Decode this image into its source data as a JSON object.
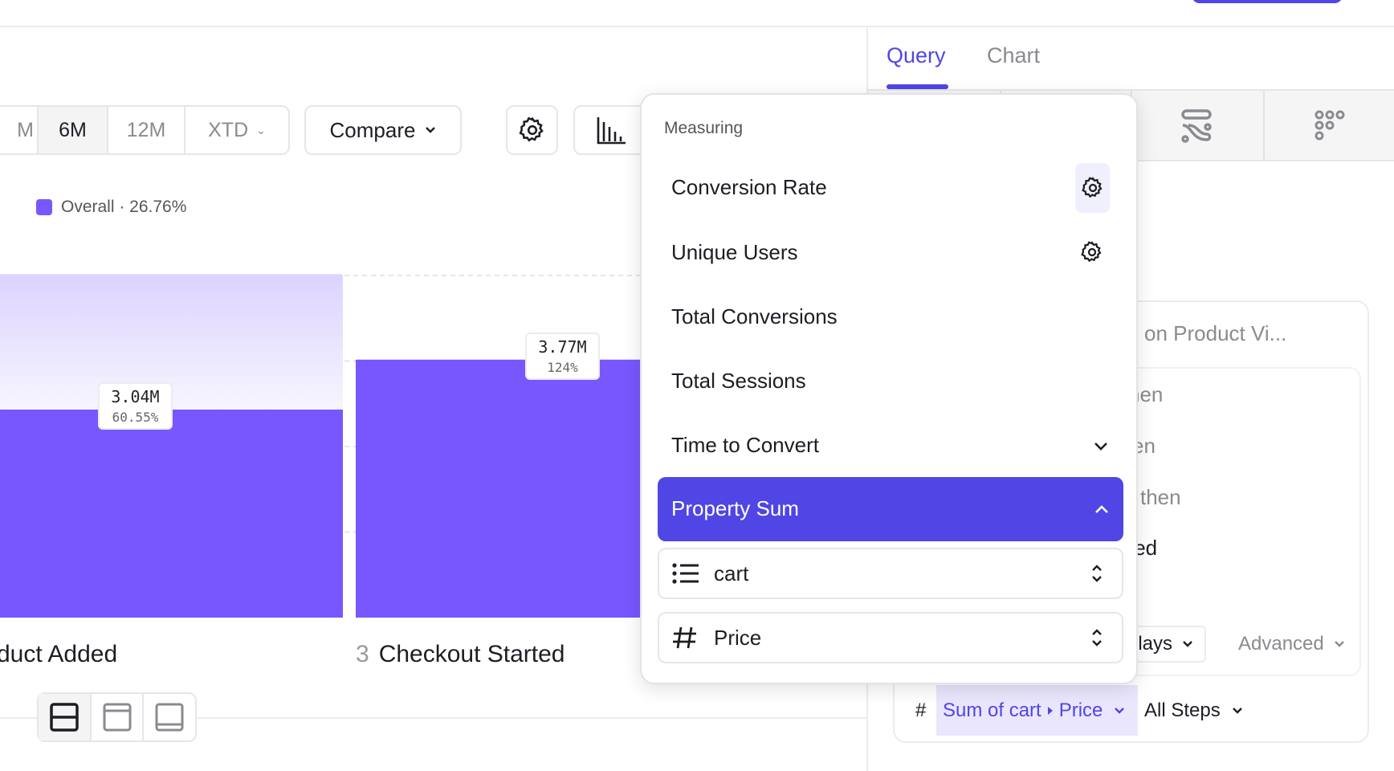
{
  "header": {
    "accent": "#4f46e5"
  },
  "tabs": [
    {
      "label": "Query",
      "active": true
    },
    {
      "label": "Chart",
      "active": false
    }
  ],
  "toolbar": {
    "ranges": [
      {
        "label": "M"
      },
      {
        "label": "6M",
        "selected": true
      },
      {
        "label": "12M"
      },
      {
        "label": "XTD"
      }
    ],
    "compare_label": "Compare",
    "settings_icon": "gear-icon",
    "chart_type_icon": "bar-chart-icon"
  },
  "side_icons": [
    "flows-icon",
    "grid-dots-icon"
  ],
  "legend": {
    "label": "Overall · 26.76%",
    "color": "#7857ff"
  },
  "chart_data": {
    "type": "bar",
    "categories": [
      "duct Added",
      "Checkout Started"
    ],
    "step_numbers": [
      "",
      "3"
    ],
    "values": [
      3.04,
      3.77
    ],
    "value_labels": [
      "3.04M",
      "3.77M"
    ],
    "percent_labels": [
      "60.55%",
      "124%"
    ],
    "percents": [
      60.55,
      124
    ],
    "unit": "M",
    "bar_color": "#7857ff",
    "prev_color": "#dcd3ff",
    "grid": true
  },
  "layout_toggles": [
    "split-horizontal-icon",
    "panel-top-icon",
    "panel-bottom-icon"
  ],
  "popup": {
    "heading": "Measuring",
    "items": [
      {
        "label": "Conversion Rate",
        "icon": "gear-icon"
      },
      {
        "label": "Unique Users",
        "icon": "gear-icon"
      },
      {
        "label": "Total Conversions"
      },
      {
        "label": "Total Sessions"
      },
      {
        "label": "Time to Convert",
        "icon": "chevron-down-icon"
      },
      {
        "label": "Property Sum",
        "icon": "chevron-up-icon",
        "selected": true
      }
    ],
    "fields": [
      {
        "icon": "list-icon",
        "value": "cart"
      },
      {
        "icon": "hash-icon",
        "value": "Price"
      }
    ]
  },
  "query_card": {
    "title_fragment": "on Product Vi...",
    "step_fragments": [
      "hen",
      "en",
      "then",
      "ted"
    ],
    "window_fragment": "lays",
    "advanced_label": "Advanced",
    "hash": "#",
    "measure_part1": "Sum of cart",
    "measure_part2": "Price",
    "steps_label": "All Steps"
  }
}
